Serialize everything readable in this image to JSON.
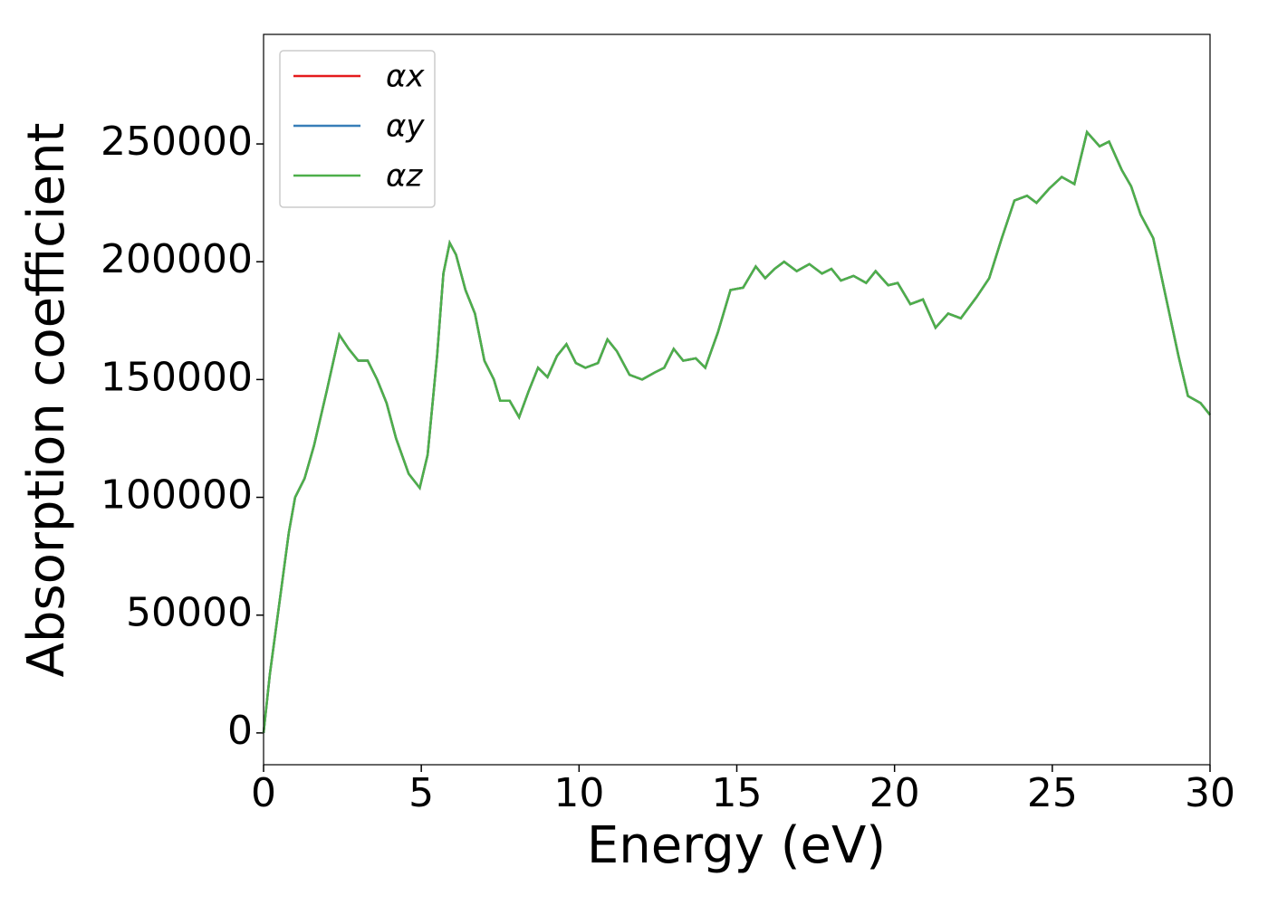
{
  "chart_data": {
    "type": "line",
    "xlabel": "Energy (eV)",
    "ylabel": "Absorption coefficient",
    "x": [
      0,
      0.2,
      0.5,
      0.8,
      1.0,
      1.3,
      1.6,
      2.0,
      2.4,
      2.7,
      3.0,
      3.3,
      3.6,
      3.9,
      4.2,
      4.6,
      4.95,
      5.2,
      5.5,
      5.7,
      5.9,
      6.1,
      6.4,
      6.7,
      7.0,
      7.3,
      7.5,
      7.8,
      8.1,
      8.4,
      8.7,
      9.0,
      9.3,
      9.6,
      9.9,
      10.2,
      10.6,
      10.9,
      11.2,
      11.6,
      12.0,
      12.4,
      12.7,
      13.0,
      13.3,
      13.7,
      14.0,
      14.4,
      14.8,
      15.2,
      15.6,
      15.9,
      16.2,
      16.5,
      16.9,
      17.3,
      17.7,
      18.0,
      18.3,
      18.7,
      19.1,
      19.4,
      19.8,
      20.1,
      20.5,
      20.9,
      21.3,
      21.7,
      22.1,
      22.6,
      23.0,
      23.4,
      23.8,
      24.2,
      24.5,
      24.9,
      25.3,
      25.7,
      26.1,
      26.5,
      26.8,
      27.2,
      27.5,
      27.8,
      28.2,
      28.6,
      29.0,
      29.3,
      29.7,
      30.0
    ],
    "series": [
      {
        "name": "αx",
        "color": "#e41a1c",
        "values": [
          0,
          25000,
          55000,
          85000,
          100000,
          108000,
          122000,
          145000,
          169000,
          163000,
          158000,
          158000,
          150000,
          140000,
          125000,
          110000,
          104000,
          118000,
          160000,
          195000,
          208000,
          203000,
          188000,
          178000,
          158000,
          150000,
          141000,
          141000,
          134000,
          145000,
          155000,
          151000,
          160000,
          165000,
          157000,
          155000,
          157000,
          167000,
          162000,
          152000,
          150000,
          153000,
          155000,
          163000,
          158000,
          159000,
          155000,
          170000,
          188000,
          189000,
          198000,
          193000,
          197000,
          200000,
          196000,
          199000,
          195000,
          197000,
          192000,
          194000,
          191000,
          196000,
          190000,
          191000,
          182000,
          184000,
          172000,
          178000,
          176000,
          185000,
          193000,
          210000,
          226000,
          228000,
          225000,
          231000,
          236000,
          233000,
          255000,
          249000,
          251000,
          239000,
          232000,
          220000,
          210000,
          185000,
          160000,
          143000,
          140000,
          135000
        ]
      },
      {
        "name": "αy",
        "color": "#377eb8",
        "values": [
          0,
          25000,
          55000,
          85000,
          100000,
          108000,
          122000,
          145000,
          169000,
          163000,
          158000,
          158000,
          150000,
          140000,
          125000,
          110000,
          104000,
          118000,
          160000,
          195000,
          208000,
          203000,
          188000,
          178000,
          158000,
          150000,
          141000,
          141000,
          134000,
          145000,
          155000,
          151000,
          160000,
          165000,
          157000,
          155000,
          157000,
          167000,
          162000,
          152000,
          150000,
          153000,
          155000,
          163000,
          158000,
          159000,
          155000,
          170000,
          188000,
          189000,
          198000,
          193000,
          197000,
          200000,
          196000,
          199000,
          195000,
          197000,
          192000,
          194000,
          191000,
          196000,
          190000,
          191000,
          182000,
          184000,
          172000,
          178000,
          176000,
          185000,
          193000,
          210000,
          226000,
          228000,
          225000,
          231000,
          236000,
          233000,
          255000,
          249000,
          251000,
          239000,
          232000,
          220000,
          210000,
          185000,
          160000,
          143000,
          140000,
          135000
        ]
      },
      {
        "name": "αz",
        "color": "#4daf4a",
        "values": [
          0,
          25000,
          55000,
          85000,
          100000,
          108000,
          122000,
          145000,
          169000,
          163000,
          158000,
          158000,
          150000,
          140000,
          125000,
          110000,
          104000,
          118000,
          160000,
          195000,
          208000,
          203000,
          188000,
          178000,
          158000,
          150000,
          141000,
          141000,
          134000,
          145000,
          155000,
          151000,
          160000,
          165000,
          157000,
          155000,
          157000,
          167000,
          162000,
          152000,
          150000,
          153000,
          155000,
          163000,
          158000,
          159000,
          155000,
          170000,
          188000,
          189000,
          198000,
          193000,
          197000,
          200000,
          196000,
          199000,
          195000,
          197000,
          192000,
          194000,
          191000,
          196000,
          190000,
          191000,
          182000,
          184000,
          172000,
          178000,
          176000,
          185000,
          193000,
          210000,
          226000,
          228000,
          225000,
          231000,
          236000,
          233000,
          255000,
          249000,
          251000,
          239000,
          232000,
          220000,
          210000,
          185000,
          160000,
          143000,
          140000,
          135000
        ]
      }
    ],
    "xlim": [
      0,
      30
    ],
    "xticks": [
      0,
      5,
      10,
      15,
      20,
      25,
      30
    ],
    "ylim": [
      -13500,
      296500
    ],
    "yticks": [
      0,
      50000,
      100000,
      150000,
      200000,
      250000
    ],
    "legend": "upper left",
    "grid": false
  }
}
